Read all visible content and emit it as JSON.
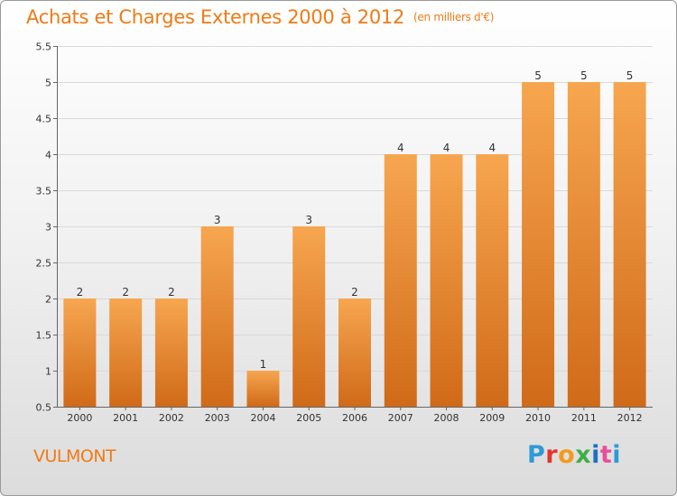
{
  "header": {
    "title": "Achats et Charges Externes 2000 à 2012",
    "subtitle": "(en milliers d'€)"
  },
  "footer": {
    "commune": "VULMONT",
    "brand": "Proxiti"
  },
  "colors": {
    "accent": "#f07a14",
    "bar_top": "#f7a650",
    "bar_bottom": "#d06a18"
  },
  "chart_data": {
    "type": "bar",
    "title": "Achats et Charges Externes 2000 à 2012",
    "subtitle": "(en milliers d'€)",
    "categories": [
      "2000",
      "2001",
      "2002",
      "2003",
      "2004",
      "2005",
      "2006",
      "2007",
      "2008",
      "2009",
      "2010",
      "2011",
      "2012"
    ],
    "values": [
      2,
      2,
      2,
      3,
      1,
      3,
      2,
      4,
      4,
      4,
      5,
      5,
      5
    ],
    "data_labels": [
      "2",
      "2",
      "2",
      "3",
      "1",
      "3",
      "2",
      "4",
      "4",
      "4",
      "5",
      "5",
      "5"
    ],
    "ylim": [
      0.5,
      5.5
    ],
    "yticks": [
      0.5,
      1,
      1.5,
      2,
      2.5,
      3,
      3.5,
      4,
      4.5,
      5,
      5.5
    ],
    "ytick_labels": [
      "0.5",
      "1",
      "1.5",
      "2",
      "2.5",
      "3",
      "3.5",
      "4",
      "4.5",
      "5",
      "5.5"
    ],
    "grid": true,
    "legend": "none"
  }
}
